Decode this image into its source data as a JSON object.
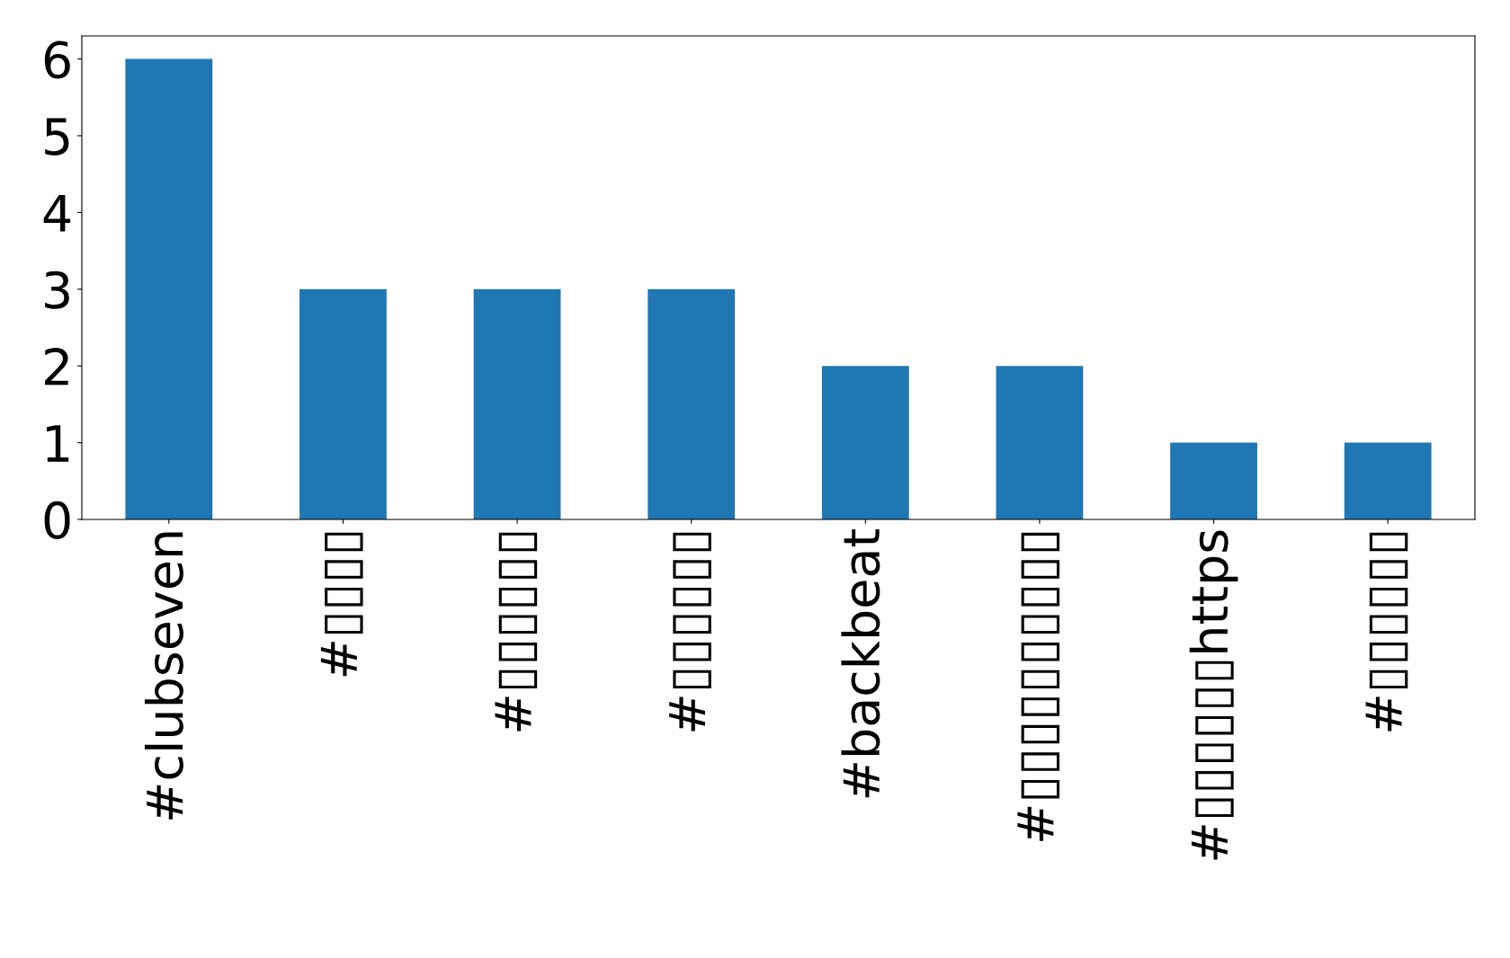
{
  "chart_data": {
    "type": "bar",
    "categories": [
      "#clubseven",
      "#▯▯▯▯",
      "#▯▯▯▯▯▯",
      "#▯▯▯▯▯▯",
      "#backbeat",
      "#▯▯▯▯▯▯▯▯▯▯",
      "#▯▯▯▯▯▯https",
      "#▯▯▯▯▯▯"
    ],
    "values": [
      6,
      3,
      3,
      3,
      2,
      2,
      1,
      1
    ],
    "color": "#1f77b4",
    "ylim": [
      0,
      6.3
    ],
    "yticks": [
      0,
      1,
      2,
      3,
      4,
      5,
      6
    ],
    "grid": false
  }
}
